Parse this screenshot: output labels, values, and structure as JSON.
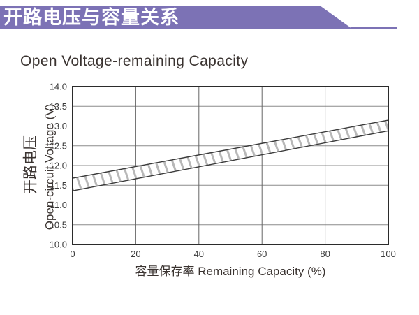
{
  "header": {
    "title": "开路电压与容量关系",
    "banner_color": "#7c72b5"
  },
  "subtitle": "Open Voltage-remaining Capacity",
  "chart_data": {
    "type": "area",
    "title": "Open Voltage-remaining Capacity",
    "xlabel": "容量保存率 Remaining Capacity (%)",
    "ylabel_cn": "开路电压",
    "ylabel_en": "Open-circuit Voltage (V)",
    "xlim": [
      0,
      100
    ],
    "ylim": [
      10.0,
      14.0
    ],
    "x_ticks": [
      0,
      20,
      40,
      60,
      80,
      100
    ],
    "x_tick_labels": [
      "0",
      "20",
      "40",
      "60",
      "80",
      "100"
    ],
    "y_ticks": [
      14.0,
      13.5,
      13.0,
      12.5,
      12.0,
      11.5,
      11.0,
      10.5,
      10.0
    ],
    "y_tick_labels": [
      "14.0",
      "13.5",
      "13.0",
      "12.5",
      "12.0",
      "11.5",
      "11.0",
      "10.5",
      "10.0"
    ],
    "grid": true,
    "legend": "none",
    "band": {
      "description": "hatched band of open-circuit voltage range vs remaining capacity",
      "x": [
        0,
        100
      ],
      "upper": [
        11.68,
        13.15
      ],
      "lower": [
        11.36,
        12.88
      ]
    },
    "colors": {
      "axis": "#2b2b2b",
      "grid_h": "#8c8c8c",
      "grid_v": "#666666",
      "band_edge": "#3a3a3a",
      "hatch": "#b8b8b8",
      "text": "#3b3b3b",
      "label_text": "#3a3330"
    }
  }
}
